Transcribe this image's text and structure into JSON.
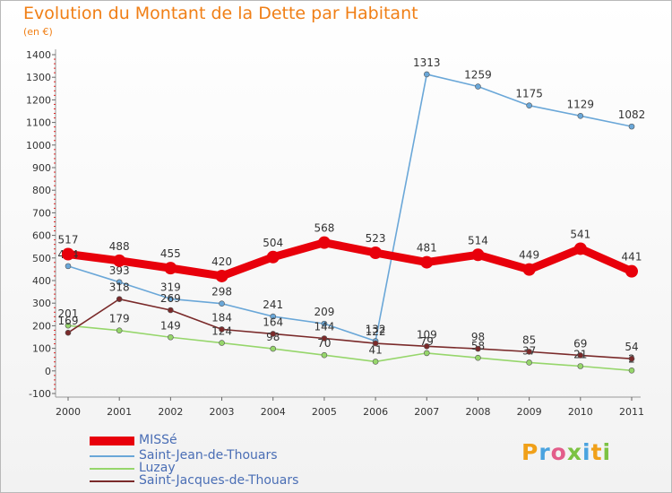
{
  "chart_data": {
    "type": "line",
    "title": "Evolution du Montant de la Dette par Habitant",
    "subtitle": "(en €)",
    "categories": [
      "2000",
      "2001",
      "2002",
      "2003",
      "2004",
      "2005",
      "2006",
      "2007",
      "2008",
      "2009",
      "2010",
      "2011"
    ],
    "ylim": [
      -100,
      1400
    ],
    "yticks": [
      "-100",
      "0",
      "100",
      "200",
      "300",
      "400",
      "500",
      "600",
      "700",
      "800",
      "900",
      "1000",
      "1100",
      "1200",
      "1300",
      "1400"
    ],
    "grid": false,
    "legend_position": "bottom-left",
    "series": [
      {
        "name": "MISSé",
        "color": "#e8000b",
        "values": [
          517,
          488,
          455,
          420,
          504,
          568,
          523,
          481,
          514,
          449,
          541,
          441
        ]
      },
      {
        "name": "Saint-Jean-de-Thouars",
        "color": "#6aa7d8",
        "values": [
          464,
          393,
          319,
          298,
          241,
          209,
          132,
          1313,
          1259,
          1175,
          1129,
          1082
        ]
      },
      {
        "name": "Luzay",
        "color": "#96d66b",
        "values": [
          201,
          179,
          149,
          124,
          98,
          70,
          41,
          79,
          58,
          37,
          21,
          2
        ]
      },
      {
        "name": "Saint-Jacques-de-Thouars",
        "color": "#7a2a2a",
        "values": [
          169,
          318,
          269,
          184,
          164,
          144,
          122,
          109,
          98,
          85,
          69,
          54
        ]
      }
    ]
  },
  "logo": {
    "letters": [
      {
        "ch": "P",
        "color": "#f0a019"
      },
      {
        "ch": "r",
        "color": "#4aa3df"
      },
      {
        "ch": "o",
        "color": "#e35d8a"
      },
      {
        "ch": "x",
        "color": "#7cc243"
      },
      {
        "ch": "i",
        "color": "#4aa3df"
      },
      {
        "ch": "t",
        "color": "#f0a019"
      },
      {
        "ch": "i",
        "color": "#7cc243"
      }
    ]
  }
}
